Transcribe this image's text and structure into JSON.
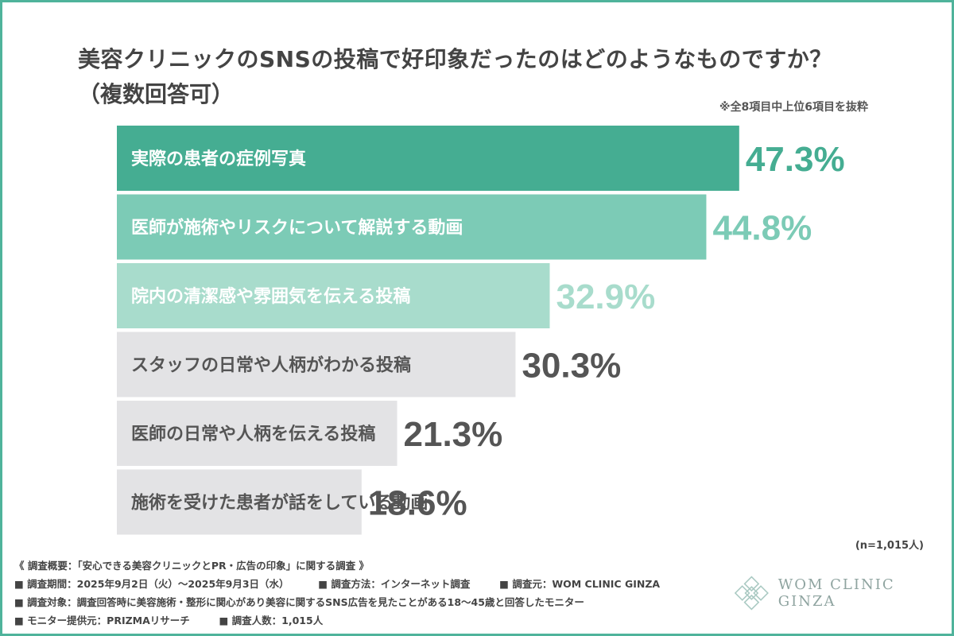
{
  "title": {
    "line1": "美容クリニックのSNSの投稿で好印象だったのはどのようなものですか？",
    "line2": "（複数回答可）"
  },
  "note_top": "※全8項目中上位6項目を抜粋",
  "sample_note": "(n=1,015人)",
  "colors": {
    "frame": "#4fb39b",
    "bar_1": "#45ad92",
    "bar_2": "#7ccbb6",
    "bar_3": "#a8dccc",
    "bar_gray": "#e3e3e5",
    "label_white": "#ffffff",
    "label_dark": "#555555"
  },
  "chart_data": {
    "type": "bar",
    "orientation": "horizontal",
    "categories": [
      "実際の患者の症例写真",
      "医師が施術やリスクについて解説する動画",
      "院内の清潔感や雰囲気を伝える投稿",
      "スタッフの日常や人柄がわかる投稿",
      "医師の日常や人柄を伝える投稿",
      "施術を受けた患者が話をしている動画"
    ],
    "values": [
      47.3,
      44.8,
      32.9,
      30.3,
      21.3,
      18.6
    ],
    "value_labels": [
      "47.3%",
      "44.8%",
      "32.9%",
      "30.3%",
      "21.3%",
      "18.6%"
    ],
    "bar_colors": [
      "#45ad92",
      "#7ccbb6",
      "#a8dccc",
      "#e3e3e5",
      "#e3e3e5",
      "#e3e3e5"
    ],
    "value_colors": [
      "#45ad92",
      "#7ccbb6",
      "#a8dccc",
      "#555555",
      "#555555",
      "#555555"
    ],
    "label_colors": [
      "#ffffff",
      "#ffffff",
      "#ffffff",
      "#555555",
      "#555555",
      "#555555"
    ],
    "xlim": [
      0,
      50
    ],
    "unit": "%",
    "grid": false,
    "legend": "none"
  },
  "footer": {
    "line1": "《 調査概要：「安心できる美容クリニックとPR・広告の印象」に関する調査 》",
    "period": "■ 調査期間：2025年9月2日（火）〜2025年9月3日（水）",
    "method": "■ 調査方法：インターネット調査",
    "origin": "■ 調査元：WOM CLINIC GINZA",
    "target": "■ 調査対象：調査回答時に美容施術・整形に関心があり美容に関するSNS広告を見たことがある18〜45歳と回答したモニター",
    "provider": "■ モニター提供元：PRIZMAリサーチ",
    "count": "■ 調査人数：1,015人"
  },
  "logo": {
    "text": "WOM CLINIC GINZA",
    "icon": "diamond-lattice-logo"
  }
}
